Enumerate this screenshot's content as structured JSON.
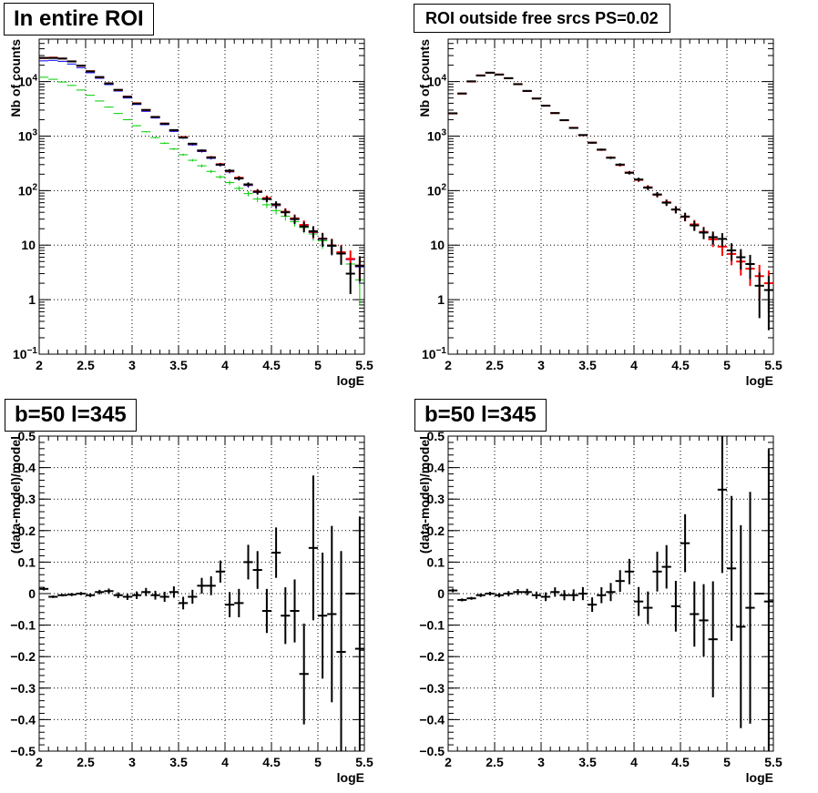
{
  "chart_data": [
    {
      "type": "line",
      "title": "In entire ROI",
      "xlabel": "logE",
      "ylabel": "Nb of counts",
      "log_y": true,
      "xlim": [
        2,
        5.5
      ],
      "ylim": [
        0.1,
        60000
      ],
      "grid": true,
      "xticks": [
        "2",
        "2.5",
        "3",
        "3.5",
        "4",
        "4.5",
        "5",
        "5.5"
      ],
      "yticks": [
        {
          "value": 0.1,
          "base": "10",
          "exp": "−1"
        },
        {
          "value": 1,
          "base": "1",
          "exp": ""
        },
        {
          "value": 10,
          "base": "10",
          "exp": ""
        },
        {
          "value": 100,
          "base": "10",
          "exp": "2"
        },
        {
          "value": 1000,
          "base": "10",
          "exp": "3"
        },
        {
          "value": 10000,
          "base": "10",
          "exp": "4"
        }
      ],
      "x": [
        2.05,
        2.15,
        2.25,
        2.35,
        2.45,
        2.55,
        2.65,
        2.75,
        2.85,
        2.95,
        3.05,
        3.15,
        3.25,
        3.35,
        3.45,
        3.55,
        3.65,
        3.75,
        3.85,
        3.95,
        4.05,
        4.15,
        4.25,
        4.35,
        4.45,
        4.55,
        4.65,
        4.75,
        4.85,
        4.95,
        5.05,
        5.15,
        5.25,
        5.35,
        5.45
      ],
      "series": [
        {
          "color": "#00cc00",
          "values": [
            12000,
            11000,
            9800,
            8500,
            7000,
            5600,
            4400,
            3400,
            2600,
            2000,
            1550,
            1200,
            940,
            740,
            580,
            455,
            360,
            285,
            225,
            178,
            140,
            110,
            88,
            70,
            55,
            43,
            34,
            27,
            21,
            16,
            12,
            9.5,
            7,
            4.5,
            2.3
          ]
        },
        {
          "color": "#0000ff",
          "values": [
            24000,
            24500,
            23500,
            21000,
            18000,
            14500,
            11500,
            8800,
            6700,
            5000,
            3800,
            2850,
            2150,
            1620,
            1220,
            920,
            690,
            520,
            390,
            292,
            220,
            165,
            124,
            93,
            70,
            53,
            40,
            30,
            22.5,
            17,
            12.8,
            9.6,
            7.2,
            5.4,
            4
          ]
        },
        {
          "color": "#ff0000",
          "values": [
            27000,
            27500,
            26500,
            23500,
            19500,
            15500,
            12000,
            9300,
            7000,
            5300,
            4000,
            3000,
            2250,
            1700,
            1280,
            960,
            720,
            540,
            410,
            305,
            228,
            172,
            129,
            97,
            73,
            55,
            41,
            31,
            23.5,
            17.5,
            13.2,
            9.9,
            7.4,
            5.6,
            4.2
          ]
        },
        {
          "color": "#000000",
          "values": [
            27200,
            27100,
            26400,
            23400,
            19600,
            15400,
            12100,
            9250,
            7050,
            5250,
            3950,
            3020,
            2240,
            1690,
            1290,
            940,
            725,
            545,
            405,
            300,
            232,
            168,
            130,
            95,
            70,
            56,
            40,
            30,
            22,
            18,
            13,
            9.8,
            7,
            3,
            4.2
          ]
        }
      ]
    },
    {
      "type": "line",
      "title": "ROI outside free srcs PS=0.02",
      "xlabel": "logE",
      "ylabel": "Nb of counts",
      "log_y": true,
      "xlim": [
        2,
        5.5
      ],
      "ylim": [
        0.1,
        60000
      ],
      "grid": true,
      "x": [
        2.05,
        2.15,
        2.25,
        2.35,
        2.45,
        2.55,
        2.65,
        2.75,
        2.85,
        2.95,
        3.05,
        3.15,
        3.25,
        3.35,
        3.45,
        3.55,
        3.65,
        3.75,
        3.85,
        3.95,
        4.05,
        4.15,
        4.25,
        4.35,
        4.45,
        4.55,
        4.65,
        4.75,
        4.85,
        4.95,
        5.05,
        5.15,
        5.25,
        5.35,
        5.45
      ],
      "series": [
        {
          "color": "#ff0000",
          "values": [
            2600,
            6000,
            10000,
            13000,
            14500,
            13500,
            11500,
            9000,
            6700,
            4900,
            3600,
            2650,
            1950,
            1420,
            1040,
            760,
            560,
            405,
            295,
            215,
            157,
            115,
            84,
            61,
            45,
            33,
            24,
            17.5,
            12.8,
            9.4,
            6.9,
            5,
            3.7,
            2.7,
            2
          ]
        },
        {
          "color": "#000000",
          "values": [
            2620,
            6050,
            10100,
            12900,
            14550,
            13450,
            11550,
            8950,
            6750,
            4880,
            3620,
            2640,
            1960,
            1410,
            1045,
            755,
            565,
            400,
            300,
            212,
            160,
            113,
            85,
            60,
            45,
            33.5,
            23,
            17,
            14,
            13,
            8,
            6,
            4.5,
            1.8,
            1.5
          ]
        }
      ]
    },
    {
      "type": "scatter",
      "title": "b=50 l=345",
      "xlabel": "logE",
      "ylabel": "(data-model)/model",
      "xlim": [
        2,
        5.5
      ],
      "ylim": [
        -0.5,
        0.5
      ],
      "grid": true,
      "yticks": [
        "−0.5",
        "−0.4",
        "−0.3",
        "−0.2",
        "−0.1",
        "0",
        "0.1",
        "0.2",
        "0.3",
        "0.4",
        "0.5"
      ],
      "x": [
        2.05,
        2.15,
        2.25,
        2.35,
        2.45,
        2.55,
        2.65,
        2.75,
        2.85,
        2.95,
        3.05,
        3.15,
        3.25,
        3.35,
        3.45,
        3.55,
        3.65,
        3.75,
        3.85,
        3.95,
        4.05,
        4.15,
        4.25,
        4.35,
        4.45,
        4.55,
        4.65,
        4.75,
        4.85,
        4.95,
        5.05,
        5.15,
        5.25,
        5.35,
        5.45
      ],
      "values": [
        0.015,
        -0.01,
        -0.005,
        -0.003,
        0,
        -0.005,
        0.005,
        0.008,
        -0.005,
        -0.01,
        -0.005,
        0.005,
        -0.005,
        -0.01,
        0.005,
        -0.03,
        -0.01,
        0.025,
        0.025,
        0.07,
        -0.035,
        -0.03,
        0.1,
        0.075,
        -0.055,
        0.13,
        -0.07,
        -0.055,
        -0.255,
        0.145,
        -0.07,
        -0.065,
        -0.185,
        0,
        -0.175
      ],
      "errors": [
        0.005,
        0.004,
        0.004,
        0.005,
        0.005,
        0.006,
        0.007,
        0.008,
        0.009,
        0.01,
        0.012,
        0.013,
        0.014,
        0.016,
        0.018,
        0.02,
        0.022,
        0.025,
        0.03,
        0.035,
        0.04,
        0.045,
        0.055,
        0.06,
        0.07,
        0.08,
        0.09,
        0.1,
        0.16,
        0.23,
        0.2,
        0.28,
        0.32,
        0,
        0.42
      ]
    },
    {
      "type": "scatter",
      "title": "b=50 l=345",
      "xlabel": "logE",
      "ylabel": "(data-model)/model",
      "xlim": [
        2,
        5.5
      ],
      "ylim": [
        -0.5,
        0.5
      ],
      "grid": true,
      "x": [
        2.05,
        2.15,
        2.25,
        2.35,
        2.45,
        2.55,
        2.65,
        2.75,
        2.85,
        2.95,
        3.05,
        3.15,
        3.25,
        3.35,
        3.45,
        3.55,
        3.65,
        3.75,
        3.85,
        3.95,
        4.05,
        4.15,
        4.25,
        4.35,
        4.45,
        4.55,
        4.65,
        4.75,
        4.85,
        4.95,
        5.05,
        5.15,
        5.25,
        5.35,
        5.45
      ],
      "values": [
        0.01,
        -0.02,
        -0.015,
        -0.005,
        0,
        -0.005,
        0,
        0.005,
        0.005,
        -0.005,
        -0.01,
        0.005,
        -0.005,
        -0.005,
        0,
        -0.035,
        -0.005,
        0.005,
        0.04,
        0.07,
        -0.025,
        -0.045,
        0.07,
        0.085,
        -0.04,
        0.16,
        -0.065,
        -0.085,
        -0.145,
        0.33,
        0.08,
        -0.105,
        -0.045,
        0,
        -0.025
      ]
    }
  ],
  "titles": {
    "p1": "In entire ROI",
    "p2": "ROI outside free srcs PS=0.02",
    "p3": "b=50 l=345",
    "p4": "b=50 l=345"
  }
}
